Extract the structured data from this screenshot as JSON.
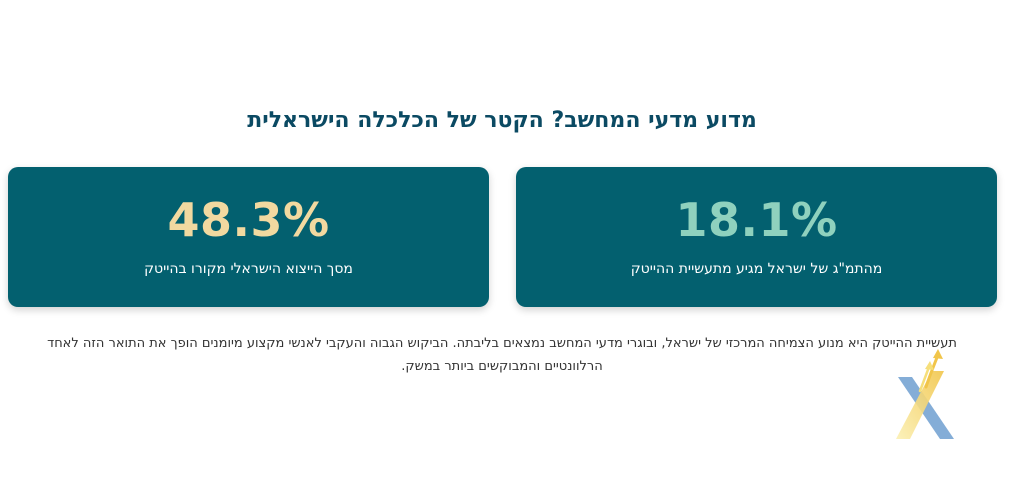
{
  "section": {
    "title": "מדוע מדעי המחשב? הקטר של הכלכלה הישראלית"
  },
  "stats": [
    {
      "value": "18.1%",
      "label": "מהתמ\"ג של ישראל מגיע מתעשיית ההייטק",
      "value_color": "#8fd1be"
    },
    {
      "value": "48.3%",
      "label": "מסך הייצוא הישראלי מקורו בהייטק",
      "value_color": "#f2d9a0"
    }
  ],
  "description": "תעשיית ההייטק היא מנוע הצמיחה המרכזי של ישראל, ובוגרי מדעי המחשב נמצאים בליבתה. הביקוש הגבוה והעקבי לאנשי מקצוע מיומנים הופך את התואר הזה לאחד הרלוונטיים והמבוקשים ביותר במשק.",
  "colors": {
    "card_background": "#03606f",
    "title": "#0b4a63",
    "logo_blue": "#6f9fd0",
    "logo_yellow": "#f6df7a"
  },
  "logo": {
    "icon": "x-arrow-logo-icon"
  }
}
